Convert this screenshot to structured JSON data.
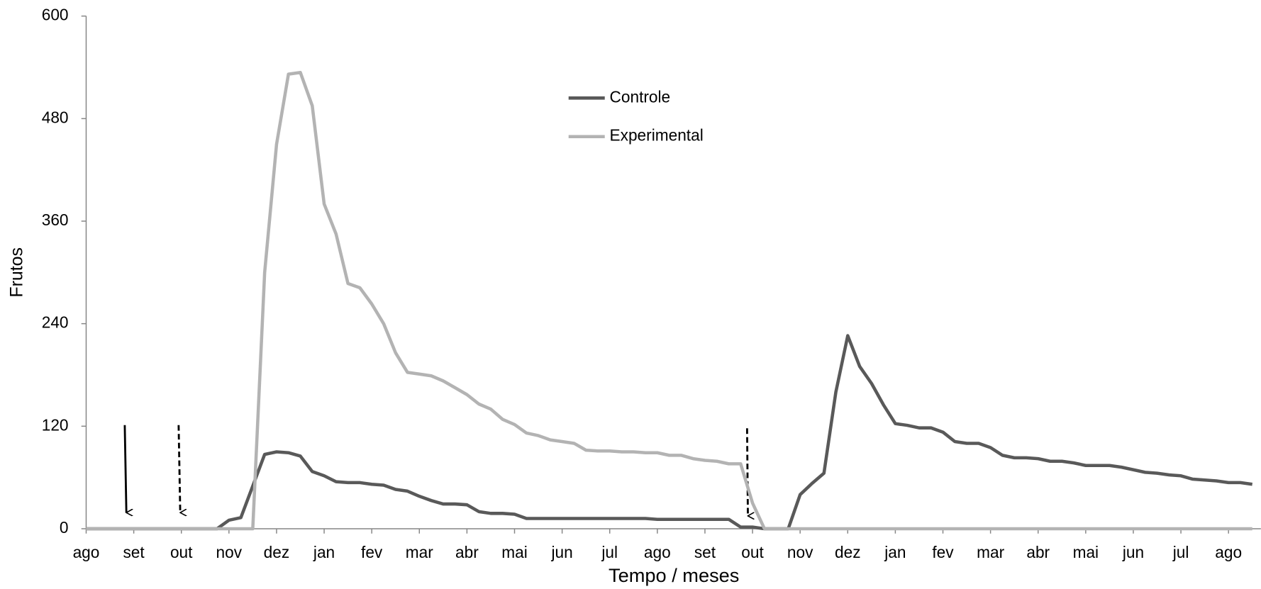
{
  "chart_data": {
    "type": "line",
    "y_label": "Frutos",
    "x_label": "Tempo / meses",
    "x": [
      0,
      0.25,
      0.5,
      0.75,
      1,
      1.25,
      1.5,
      1.75,
      2,
      2.25,
      2.5,
      2.75,
      3,
      3.25,
      3.5,
      3.75,
      4,
      4.25,
      4.5,
      4.75,
      5,
      5.25,
      5.5,
      5.75,
      6,
      6.25,
      6.5,
      6.75,
      7,
      7.25,
      7.5,
      7.75,
      8,
      8.25,
      8.5,
      8.75,
      9,
      9.25,
      9.5,
      9.75,
      10,
      10.25,
      10.5,
      10.75,
      11,
      11.25,
      11.5,
      11.75,
      12,
      12.25,
      12.5,
      12.75,
      13,
      13.25,
      13.5,
      13.75,
      14,
      14.25,
      14.5,
      14.75,
      15,
      15.25,
      15.5,
      15.75,
      16,
      16.25,
      16.5,
      16.75,
      17,
      17.25,
      17.5,
      17.75,
      18,
      18.25,
      18.5,
      18.75,
      19,
      19.25,
      19.5,
      19.75,
      20,
      20.25,
      20.5,
      20.75,
      21,
      21.25,
      21.5,
      21.75,
      22,
      22.25,
      22.5,
      22.75,
      23,
      23.25,
      23.5,
      23.75,
      24,
      24.25,
      24.5
    ],
    "series": [
      {
        "name": "Controle",
        "color": "#595959",
        "values": [
          0,
          0,
          0,
          0,
          0,
          0,
          0,
          0,
          0,
          0,
          0,
          0,
          10,
          13,
          50,
          87,
          90,
          89,
          85,
          67,
          62,
          55,
          54,
          54,
          52,
          51,
          46,
          44,
          38,
          33,
          29,
          29,
          28,
          20,
          18,
          18,
          17,
          12,
          12,
          12,
          12,
          12,
          12,
          12,
          12,
          12,
          12,
          12,
          11,
          11,
          11,
          11,
          11,
          11,
          11,
          2,
          2,
          0,
          0,
          0,
          40,
          53,
          65,
          160,
          226,
          190,
          170,
          145,
          123,
          121,
          118,
          118,
          113,
          102,
          100,
          100,
          95,
          86,
          83,
          83,
          82,
          79,
          79,
          77,
          74,
          74,
          74,
          72,
          69,
          66,
          65,
          63,
          62,
          58,
          57,
          56,
          54,
          54,
          52
        ]
      },
      {
        "name": "Experimental",
        "color": "#b3b3b3",
        "values": [
          0,
          0,
          0,
          0,
          0,
          0,
          0,
          0,
          0,
          0,
          0,
          0,
          0,
          0,
          0,
          300,
          450,
          532,
          534,
          495,
          380,
          345,
          287,
          282,
          263,
          240,
          206,
          183,
          181,
          179,
          173,
          165,
          157,
          146,
          140,
          128,
          122,
          112,
          109,
          104,
          102,
          100,
          92,
          91,
          91,
          90,
          90,
          89,
          89,
          86,
          86,
          82,
          80,
          79,
          76,
          76,
          30,
          0,
          0,
          0,
          0,
          0,
          0,
          0,
          0,
          0,
          0,
          0,
          0,
          0,
          0,
          0,
          0,
          0,
          0,
          0,
          0,
          0,
          0,
          0,
          0,
          0,
          0,
          0,
          0,
          0,
          0,
          0,
          0,
          0,
          0,
          0,
          0,
          0,
          0,
          0,
          0,
          0,
          0
        ]
      }
    ],
    "xlim": [
      0,
      24.68
    ],
    "xticks": [
      {
        "value": 0,
        "label": "ago"
      },
      {
        "value": 1,
        "label": "set"
      },
      {
        "value": 2,
        "label": "out"
      },
      {
        "value": 3,
        "label": "nov"
      },
      {
        "value": 4,
        "label": "dez"
      },
      {
        "value": 5,
        "label": "jan"
      },
      {
        "value": 6,
        "label": "fev"
      },
      {
        "value": 7,
        "label": "mar"
      },
      {
        "value": 8,
        "label": "abr"
      },
      {
        "value": 9,
        "label": "mai"
      },
      {
        "value": 10,
        "label": "jun"
      },
      {
        "value": 11,
        "label": "jul"
      },
      {
        "value": 12,
        "label": "ago"
      },
      {
        "value": 13,
        "label": "set"
      },
      {
        "value": 14,
        "label": "out"
      },
      {
        "value": 15,
        "label": "nov"
      },
      {
        "value": 16,
        "label": "dez"
      },
      {
        "value": 17,
        "label": "jan"
      },
      {
        "value": 18,
        "label": "fev"
      },
      {
        "value": 19,
        "label": "mar"
      },
      {
        "value": 20,
        "label": "abr"
      },
      {
        "value": 21,
        "label": "mai"
      },
      {
        "value": 22,
        "label": "jun"
      },
      {
        "value": 23,
        "label": "jul"
      },
      {
        "value": 24,
        "label": "ago"
      }
    ],
    "ylim": [
      0,
      600
    ],
    "yticks": [
      0,
      120,
      240,
      360,
      480,
      600
    ],
    "legend": "upper center"
  }
}
